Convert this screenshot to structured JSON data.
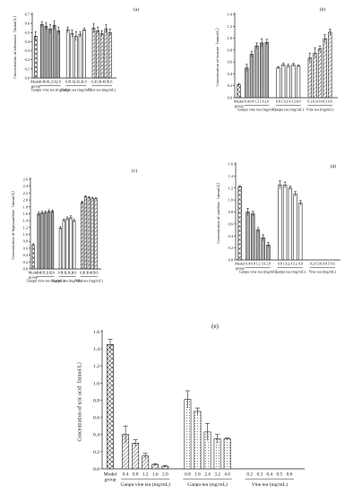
{
  "chart_data": [
    {
      "panel": "(a)",
      "type": "bar",
      "ylabel": "Concentration of adenosine（mmol/L）",
      "ylim": [
        0,
        0.7
      ],
      "yticks": [
        0.0,
        0.1,
        0.2,
        0.3,
        0.4,
        0.5,
        0.6,
        0.7
      ],
      "model": {
        "label": "Model group",
        "value": 0.46,
        "error": 0.05
      },
      "groups": [
        {
          "name": "Ganpu vine tea (mg/mL)",
          "pattern": "gray",
          "categories": [
            "0.4",
            "0.8",
            "1.2",
            "1.6",
            "2.0"
          ],
          "values": [
            0.59,
            0.57,
            0.54,
            0.58,
            0.52
          ],
          "errors": [
            0.03,
            0.04,
            0.05,
            0.05,
            0.04
          ]
        },
        {
          "name": "Ganpu tea (mg/mL)",
          "pattern": "plain",
          "categories": [
            "0.8",
            "1.6",
            "2.4",
            "3.2",
            "4.0"
          ],
          "values": [
            0.53,
            0.49,
            0.46,
            0.48,
            0.53
          ],
          "errors": [
            0.03,
            0.04,
            0.05,
            0.03,
            0.02
          ]
        },
        {
          "name": "Vine tea (mg/mL)",
          "pattern": "hatch",
          "categories": [
            "0.2",
            "0.3",
            "0.4",
            "0.5",
            "0.6"
          ],
          "values": [
            0.55,
            0.52,
            0.49,
            0.54,
            0.5
          ],
          "errors": [
            0.05,
            0.04,
            0.03,
            0.05,
            0.04
          ]
        }
      ]
    },
    {
      "panel": "(b)",
      "type": "bar",
      "ylabel": "Concentration of inosine（mmol/L）",
      "ylim": [
        0,
        1.4
      ],
      "yticks": [
        0.0,
        0.2,
        0.4,
        0.6,
        0.8,
        1.0,
        1.2,
        1.4
      ],
      "model": {
        "label": "Model group",
        "value": 0.22,
        "error": 0.02
      },
      "groups": [
        {
          "name": "Ganpu vine tea (mg/mL)",
          "pattern": "gray",
          "categories": [
            "0.4",
            "0.8",
            "1.2",
            "1.6",
            "2.0"
          ],
          "values": [
            0.5,
            0.73,
            0.87,
            0.92,
            0.93
          ],
          "errors": [
            0.06,
            0.05,
            0.05,
            0.07,
            0.05
          ]
        },
        {
          "name": "Ganpu tea (mg/mL)",
          "pattern": "plain",
          "categories": [
            "0.8",
            "1.6",
            "2.4",
            "3.2",
            "4.0"
          ],
          "values": [
            0.5,
            0.55,
            0.53,
            0.55,
            0.53
          ],
          "errors": [
            0.02,
            0.03,
            0.03,
            0.03,
            0.02
          ]
        },
        {
          "name": "Vine tea (mg/mL)",
          "pattern": "hatch",
          "categories": [
            "0.2",
            "0.3",
            "0.4",
            "0.5",
            "0.6"
          ],
          "values": [
            0.67,
            0.75,
            0.82,
            0.99,
            1.1
          ],
          "errors": [
            0.08,
            0.09,
            0.05,
            0.07,
            0.05
          ]
        }
      ]
    },
    {
      "panel": "(c)",
      "type": "bar",
      "ylabel": "Concentration of hypoxanthine（mmol/L）",
      "ylim": [
        0,
        2.6
      ],
      "yticks": [
        0.0,
        0.2,
        0.4,
        0.6,
        0.8,
        1.0,
        1.2,
        1.4,
        1.6,
        1.8,
        2.0,
        2.2,
        2.4,
        2.6
      ],
      "model": {
        "label": "Model group",
        "value": 0.7,
        "error": 0.04
      },
      "groups": [
        {
          "name": "Ganpu vine tea (mg/mL)",
          "pattern": "gray",
          "categories": [
            "0.4",
            "0.8",
            "1.2",
            "1.6",
            "2.0"
          ],
          "values": [
            1.6,
            1.63,
            1.64,
            1.67,
            1.67
          ],
          "errors": [
            0.06,
            0.05,
            0.04,
            0.05,
            0.04
          ]
        },
        {
          "name": "Ganpu tea (mg/mL)",
          "pattern": "plain",
          "categories": [
            "0.8",
            "1.6",
            "2.4",
            "3.2",
            "4.0"
          ],
          "values": [
            1.19,
            1.41,
            1.46,
            1.49,
            1.4
          ],
          "errors": [
            0.04,
            0.04,
            0.05,
            0.06,
            0.04
          ]
        },
        {
          "name": "Vine tea (mg/mL)",
          "pattern": "hatch",
          "categories": [
            "0.2",
            "0.3",
            "0.4",
            "0.5",
            "0.6"
          ],
          "values": [
            1.93,
            2.1,
            2.07,
            2.05,
            2.04
          ],
          "errors": [
            0.04,
            0.03,
            0.03,
            0.03,
            0.03
          ]
        }
      ]
    },
    {
      "panel": "(d)",
      "type": "bar",
      "ylabel": "Concentration of xanthine（mmol/L）",
      "ylim": [
        0,
        1.6
      ],
      "yticks": [
        0.0,
        0.2,
        0.4,
        0.6,
        0.8,
        1.0,
        1.2,
        1.4,
        1.6
      ],
      "model": {
        "label": "Model group",
        "value": 1.22,
        "error": 0.02
      },
      "groups": [
        {
          "name": "Ganpu vine tea (mg/mL)",
          "pattern": "gray",
          "categories": [
            "0.4",
            "0.8",
            "1.2",
            "1.6",
            "2.0"
          ],
          "values": [
            0.8,
            0.77,
            0.5,
            0.37,
            0.25
          ],
          "errors": [
            0.06,
            0.04,
            0.04,
            0.05,
            0.04
          ]
        },
        {
          "name": "Ganpu tea (mg/mL)",
          "pattern": "plain",
          "categories": [
            "0.8",
            "1.6",
            "2.4",
            "3.2",
            "4.0"
          ],
          "values": [
            1.25,
            1.25,
            1.2,
            1.1,
            0.95
          ],
          "errors": [
            0.07,
            0.05,
            0.03,
            0.04,
            0.04
          ]
        },
        {
          "name": "Vine tea (mg/mL)",
          "pattern": "none",
          "categories": [
            "0.2",
            "0.3",
            "0.4",
            "0.5",
            "0.6"
          ],
          "values": [
            0,
            0,
            0,
            0,
            0
          ],
          "errors": [
            0,
            0,
            0,
            0,
            0
          ]
        }
      ]
    },
    {
      "panel": "(e)",
      "type": "bar",
      "ylabel": "Concentration of uric acid（mmol/L）",
      "ylim": [
        0,
        1.6
      ],
      "yticks": [
        0.0,
        0.2,
        0.4,
        0.6,
        0.8,
        1.0,
        1.2,
        1.4,
        1.6
      ],
      "model": {
        "label": "Model group",
        "value": 1.45,
        "error": 0.06
      },
      "groups": [
        {
          "name": "Ganpu vine tea (mg/mL)",
          "pattern": "hatch",
          "categories": [
            "0.4",
            "0.8",
            "1.2",
            "1.6",
            "2.0"
          ],
          "values": [
            0.4,
            0.3,
            0.15,
            0.05,
            0.03
          ],
          "errors": [
            0.1,
            0.04,
            0.03,
            0.01,
            0.01
          ]
        },
        {
          "name": "Ganpu tea (mg/mL)",
          "pattern": "dots",
          "categories": [
            "0.8",
            "1.6",
            "2.4",
            "3.2",
            "4.0"
          ],
          "values": [
            0.81,
            0.67,
            0.43,
            0.35,
            0.35
          ],
          "errors": [
            0.1,
            0.04,
            0.1,
            0.05,
            0.01
          ]
        },
        {
          "name": "Vine tea (mg/mL)",
          "pattern": "none",
          "categories": [
            "0.2",
            "0.3",
            "0.4",
            "0.5",
            "0.6"
          ],
          "values": [
            0,
            0,
            0,
            0,
            0
          ],
          "errors": [
            0,
            0,
            0,
            0,
            0
          ]
        }
      ]
    }
  ]
}
